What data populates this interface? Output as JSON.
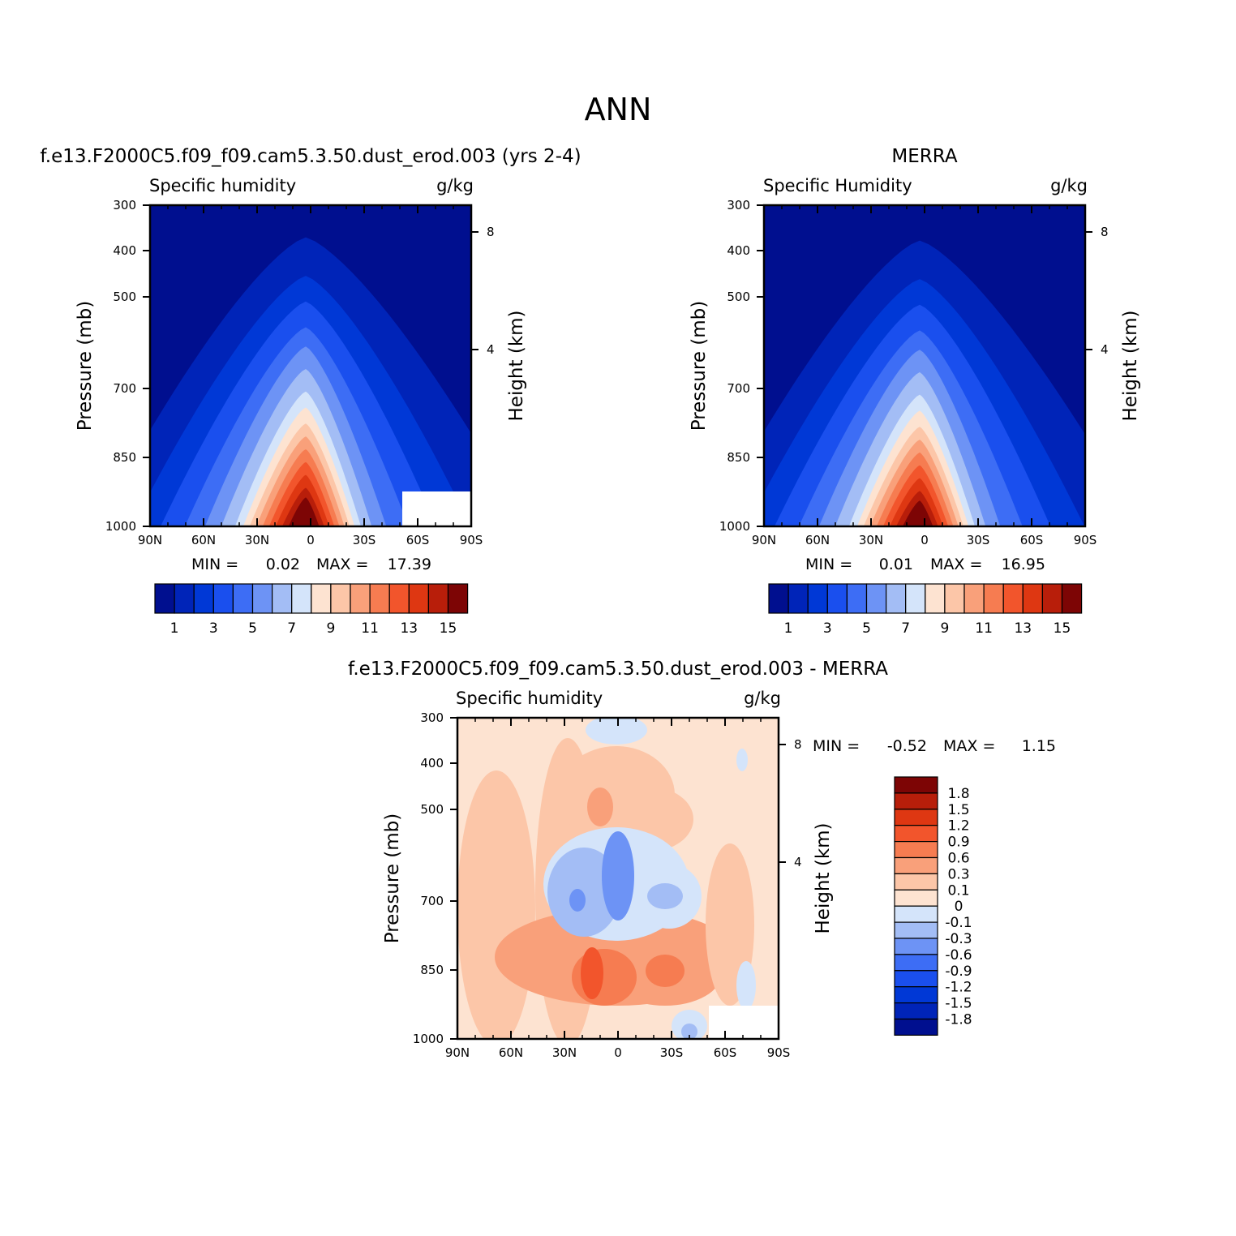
{
  "figure": {
    "title": "ANN"
  },
  "chart_data": [
    {
      "type": "heatmap",
      "title": "f.e13.F2000C5.f09_f09.cam5.3.50.dust_erod.003 (yrs 2-4)",
      "subtitle_left": "Specific humidity",
      "units": "g/kg",
      "ylabel": "Pressure (mb)",
      "ylabel_right": "Height (km)",
      "x_ticks": [
        "90N",
        "60N",
        "30N",
        "0",
        "30S",
        "60S",
        "90S"
      ],
      "y_ticks": [
        "300",
        "400",
        "500",
        "700",
        "850",
        "1000"
      ],
      "y_right_ticks": [
        "8",
        "4"
      ],
      "min_label": "MIN =",
      "min": "0.02",
      "max_label": "MAX =",
      "max": "17.39",
      "levels": [
        0,
        1,
        2,
        3,
        4,
        5,
        6,
        7,
        8,
        9,
        10,
        11,
        12,
        13,
        14,
        15,
        16
      ],
      "colorbar_labels": [
        "1",
        "3",
        "5",
        "7",
        "9",
        "11",
        "13",
        "15"
      ],
      "colors": [
        "#000f8f",
        "#0024b8",
        "#0038d6",
        "#1a4fee",
        "#3d6df5",
        "#6d93f5",
        "#a3bdf5",
        "#d4e4fa",
        "#fde3d1",
        "#fcc6a8",
        "#f9a07a",
        "#f67c51",
        "#f2552c",
        "#de3712",
        "#b81e0a",
        "#7d0505"
      ]
    },
    {
      "type": "heatmap",
      "title": "MERRA",
      "subtitle_left": "Specific Humidity",
      "units": "g/kg",
      "ylabel": "Pressure (mb)",
      "ylabel_right": "Height (km)",
      "x_ticks": [
        "90N",
        "60N",
        "30N",
        "0",
        "30S",
        "60S",
        "90S"
      ],
      "y_ticks": [
        "300",
        "400",
        "500",
        "700",
        "850",
        "1000"
      ],
      "y_right_ticks": [
        "8",
        "4"
      ],
      "min_label": "MIN =",
      "min": "0.01",
      "max_label": "MAX =",
      "max": "16.95",
      "levels": [
        0,
        1,
        2,
        3,
        4,
        5,
        6,
        7,
        8,
        9,
        10,
        11,
        12,
        13,
        14,
        15,
        16
      ],
      "colorbar_labels": [
        "1",
        "3",
        "5",
        "7",
        "9",
        "11",
        "13",
        "15"
      ],
      "colors": [
        "#000f8f",
        "#0024b8",
        "#0038d6",
        "#1a4fee",
        "#3d6df5",
        "#6d93f5",
        "#a3bdf5",
        "#d4e4fa",
        "#fde3d1",
        "#fcc6a8",
        "#f9a07a",
        "#f67c51",
        "#f2552c",
        "#de3712",
        "#b81e0a",
        "#7d0505"
      ]
    },
    {
      "type": "heatmap",
      "title": "f.e13.F2000C5.f09_f09.cam5.3.50.dust_erod.003 - MERRA",
      "subtitle_left": "Specific humidity",
      "units": "g/kg",
      "ylabel": "Pressure (mb)",
      "ylabel_right": "Height (km)",
      "x_ticks": [
        "90N",
        "60N",
        "30N",
        "0",
        "30S",
        "60S",
        "90S"
      ],
      "y_ticks": [
        "300",
        "400",
        "500",
        "700",
        "850",
        "1000"
      ],
      "y_right_ticks": [
        "8",
        "4"
      ],
      "min_label": "MIN =",
      "min": "-0.52",
      "max_label": "MAX =",
      "max": "1.15",
      "levels": [
        -1.8,
        -1.5,
        -1.2,
        -0.9,
        -0.6,
        -0.3,
        -0.1,
        0,
        0.1,
        0.3,
        0.6,
        0.9,
        1.2,
        1.5,
        1.8
      ],
      "colorbar_labels": [
        "1.8",
        "1.5",
        "1.2",
        "0.9",
        "0.6",
        "0.3",
        "0.1",
        "0",
        "-0.1",
        "-0.3",
        "-0.6",
        "-0.9",
        "-1.2",
        "-1.5",
        "-1.8"
      ],
      "colors": [
        "#000f8f",
        "#0024b8",
        "#0038d6",
        "#1a4fee",
        "#3d6df5",
        "#6d93f5",
        "#a3bdf5",
        "#d4e4fa",
        "#fde3d1",
        "#fcc6a8",
        "#f9a07a",
        "#f67c51",
        "#f2552c",
        "#de3712",
        "#b81e0a",
        "#7d0505"
      ]
    }
  ]
}
